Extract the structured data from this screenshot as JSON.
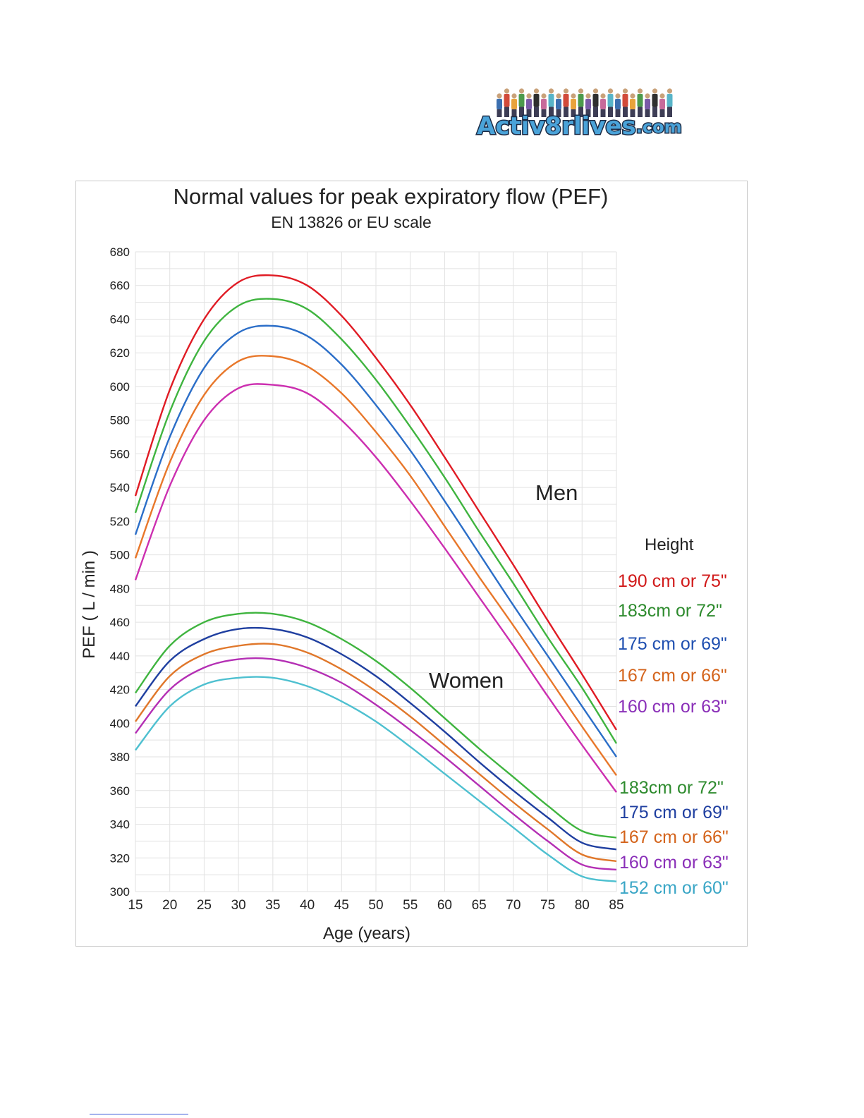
{
  "logo": {
    "text_main": "Activ8rlives",
    "text_suffix": ".com",
    "colors": {
      "fill": "#4aa3d9",
      "outline": "#1b2a44",
      "people": [
        "#3b6fb0",
        "#d14a3a",
        "#e8a33c",
        "#4c9a4c",
        "#7a5aa8",
        "#2f2f2f",
        "#c76a9a",
        "#58b4c8"
      ]
    }
  },
  "chart_data": {
    "type": "line",
    "title": "Normal values for peak expiratory flow (PEF)",
    "subtitle": "EN 13826 or EU scale",
    "xlabel": "Age (years)",
    "ylabel": "PEF ( L / min )",
    "xlim": [
      15,
      85
    ],
    "ylim": [
      300,
      680
    ],
    "x_ticks": [
      15,
      20,
      25,
      30,
      35,
      40,
      45,
      50,
      55,
      60,
      65,
      70,
      75,
      80,
      85
    ],
    "y_ticks": [
      300,
      320,
      340,
      360,
      380,
      400,
      420,
      440,
      460,
      480,
      500,
      520,
      540,
      560,
      580,
      600,
      620,
      640,
      660,
      680
    ],
    "grid": true,
    "legend_title": "Height",
    "x": [
      15,
      20,
      25,
      30,
      35,
      40,
      45,
      50,
      55,
      60,
      65,
      70,
      75,
      80,
      85
    ],
    "groups": [
      {
        "name": "Men",
        "series": [
          {
            "name": "190 cm or 75\"",
            "color": "#e01b24",
            "values": [
              535,
              598,
              640,
              662,
              666,
              660,
              642,
              617,
              589,
              558,
              526,
              494,
              461,
              429,
              396
            ]
          },
          {
            "name": "183cm or 72\"",
            "color": "#3fb43f",
            "values": [
              525,
              585,
              627,
              648,
              652,
              646,
              628,
              604,
              576,
              546,
              514,
              483,
              451,
              421,
              388
            ]
          },
          {
            "name": "175 cm or 69\"",
            "color": "#2b6ec8",
            "values": [
              512,
              570,
              611,
              632,
              636,
              630,
              613,
              589,
              562,
              532,
              501,
              470,
              440,
              410,
              380
            ]
          },
          {
            "name": "167 cm or 66\"",
            "color": "#e8772a",
            "values": [
              498,
              555,
              595,
              615,
              618,
              612,
              596,
              573,
              547,
              517,
              487,
              458,
              428,
              398,
              369
            ]
          },
          {
            "name": "160 cm or 63\"",
            "color": "#cc2fb0",
            "values": [
              485,
              541,
              580,
              599,
              601,
              596,
              580,
              558,
              532,
              504,
              475,
              446,
              416,
              387,
              359
            ]
          }
        ]
      },
      {
        "name": "Women",
        "series": [
          {
            "name": "183cm or 72\"",
            "color": "#3fb43f",
            "values": [
              418,
              446,
              460,
              465,
              465,
              460,
              450,
              437,
              421,
              403,
              385,
              368,
              351,
              336,
              332
            ]
          },
          {
            "name": "175 cm or 69\"",
            "color": "#1f3fa0",
            "values": [
              410,
              437,
              450,
              456,
              456,
              451,
              441,
              428,
              412,
              395,
              377,
              360,
              344,
              329,
              325
            ]
          },
          {
            "name": "167 cm or 66\"",
            "color": "#e0772a",
            "values": [
              401,
              428,
              441,
              446,
              447,
              442,
              432,
              419,
              404,
              387,
              370,
              353,
              337,
              322,
              318
            ]
          },
          {
            "name": "160 cm or 63\"",
            "color": "#b42fb4",
            "values": [
              394,
              420,
              433,
              438,
              438,
              433,
              424,
              411,
              396,
              380,
              363,
              346,
              330,
              316,
              313
            ]
          },
          {
            "name": "152 cm or 60\"",
            "color": "#4ec0d0",
            "values": [
              384,
              410,
              423,
              427,
              427,
              422,
              413,
              401,
              386,
              370,
              354,
              338,
              322,
              309,
              306
            ]
          }
        ]
      }
    ],
    "label_colors": {
      "men": [
        "#d11a1a",
        "#2e8b2e",
        "#1f4fb0",
        "#d4641c",
        "#8a2fb8"
      ],
      "women": [
        "#2e8b2e",
        "#1f3fa0",
        "#d4641c",
        "#8a2fb8",
        "#3aa6c6"
      ]
    }
  }
}
